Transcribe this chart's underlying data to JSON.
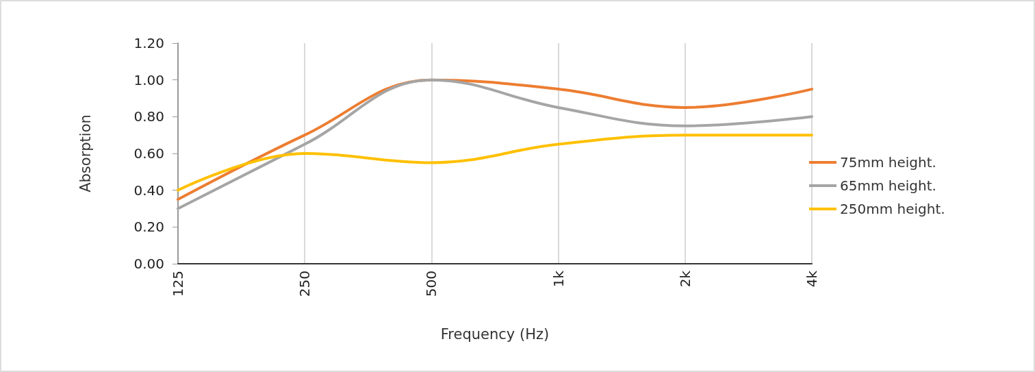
{
  "chart_data": {
    "type": "line",
    "xlabel": "Frequency (Hz)",
    "ylabel": "Absorption",
    "categories": [
      "125",
      "250",
      "500",
      "1k",
      "2k",
      "4k"
    ],
    "series": [
      {
        "name": "75mm height.",
        "color": "#ed7d31",
        "values": [
          0.35,
          0.7,
          1.0,
          0.95,
          0.85,
          0.95
        ]
      },
      {
        "name": "65mm height.",
        "color": "#a5a5a5",
        "values": [
          0.3,
          0.65,
          1.0,
          0.85,
          0.75,
          0.8
        ]
      },
      {
        "name": "250mm height.",
        "color": "#ffc000",
        "values": [
          0.4,
          0.6,
          0.55,
          0.65,
          0.7,
          0.7
        ]
      }
    ],
    "ylim": [
      0,
      1.2
    ],
    "yticks": [
      {
        "value": 0,
        "label": "0.00"
      },
      {
        "value": 0.2,
        "label": "0.20"
      },
      {
        "value": 0.4,
        "label": "0.40"
      },
      {
        "value": 0.6,
        "label": "0.60"
      },
      {
        "value": 0.8,
        "label": "0.80"
      },
      {
        "value": 1.0,
        "label": "1.00"
      },
      {
        "value": 1.2,
        "label": "1.20"
      }
    ],
    "grid": "x",
    "legend": "right",
    "marker": "none",
    "line_style": "solid"
  }
}
